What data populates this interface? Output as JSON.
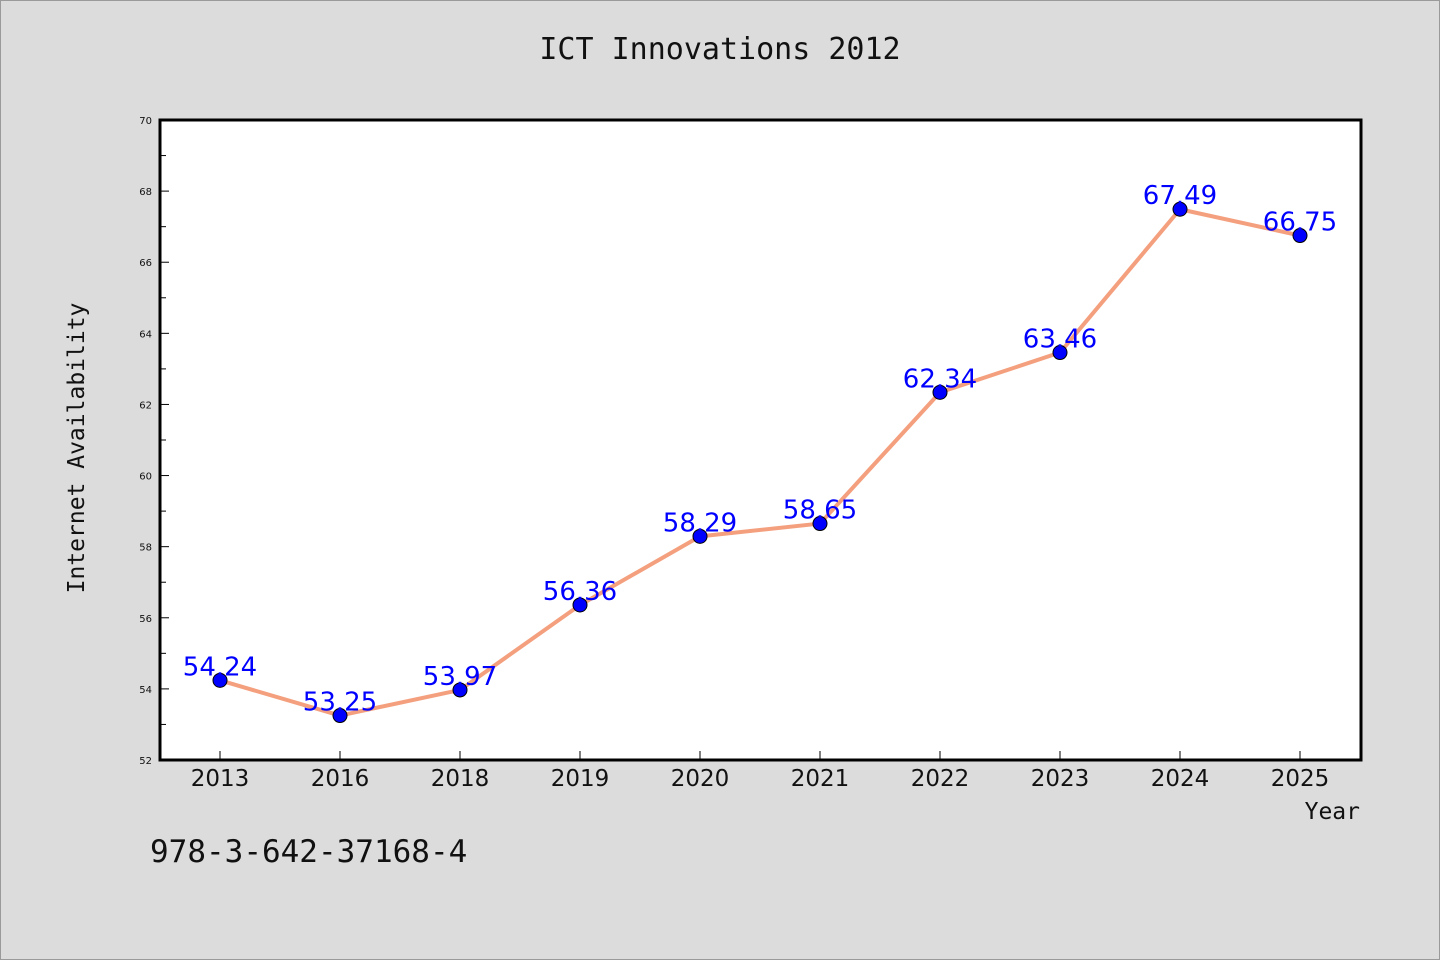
{
  "chart_data": {
    "type": "line",
    "title": "ICT Innovations 2012",
    "xlabel": "Year",
    "ylabel": "Internet Availability",
    "categories": [
      "2013",
      "2016",
      "2018",
      "2019",
      "2020",
      "2021",
      "2022",
      "2023",
      "2024",
      "2025"
    ],
    "series": [
      {
        "values": [
          54.24,
          53.25,
          53.97,
          56.36,
          58.29,
          58.65,
          62.34,
          63.46,
          67.49,
          66.75
        ],
        "labels": [
          "54.24",
          "53.25",
          "53.97",
          "56.36",
          "58.29",
          "58.65",
          "62.34",
          "63.46",
          "67.49",
          "66.75"
        ],
        "line_color": "#f4a07e",
        "marker_color": "#0000ff"
      }
    ],
    "ylim": [
      52,
      70
    ],
    "yticks": [
      "52",
      "54",
      "56",
      "58",
      "60",
      "62",
      "64",
      "66",
      "68",
      "70"
    ],
    "grid": false,
    "legend": "none"
  },
  "footer": {
    "isbn": "978-3-642-37168-4"
  }
}
